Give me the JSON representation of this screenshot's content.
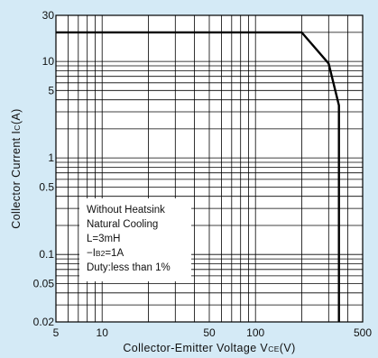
{
  "chart_data": {
    "type": "line",
    "xscale": "log",
    "yscale": "log",
    "xlim": [
      5,
      500
    ],
    "ylim": [
      0.02,
      30
    ],
    "grid": true,
    "xlabel": "Collector-Emitter Voltage V",
    "xlabel_sub": "CE",
    "xlabel_unit": "(V)",
    "ylabel": "Collector Current I",
    "ylabel_sub": "C",
    "ylabel_unit": "(A)",
    "x_ticks": [
      {
        "value": 5,
        "label": "5"
      },
      {
        "value": 10,
        "label": "10"
      },
      {
        "value": 50,
        "label": "50"
      },
      {
        "value": 100,
        "label": "100"
      },
      {
        "value": 500,
        "label": "500"
      }
    ],
    "y_ticks": [
      {
        "value": 0.02,
        "label": "0.02"
      },
      {
        "value": 0.05,
        "label": "0.05"
      },
      {
        "value": 0.1,
        "label": "0.1"
      },
      {
        "value": 0.5,
        "label": "0.5"
      },
      {
        "value": 1,
        "label": "1"
      },
      {
        "value": 5,
        "label": "5"
      },
      {
        "value": 10,
        "label": "10"
      },
      {
        "value": 30,
        "label": "30"
      }
    ],
    "series": [
      {
        "x": [
          5,
          200,
          300,
          350,
          350
        ],
        "y": [
          20,
          20,
          9.5,
          3.5,
          0.02
        ]
      }
    ],
    "annotation": [
      "Without Heatsink",
      "Natural Cooling",
      "L=3mH",
      "−I|B2|=1A",
      "Duty:less than 1%"
    ]
  }
}
